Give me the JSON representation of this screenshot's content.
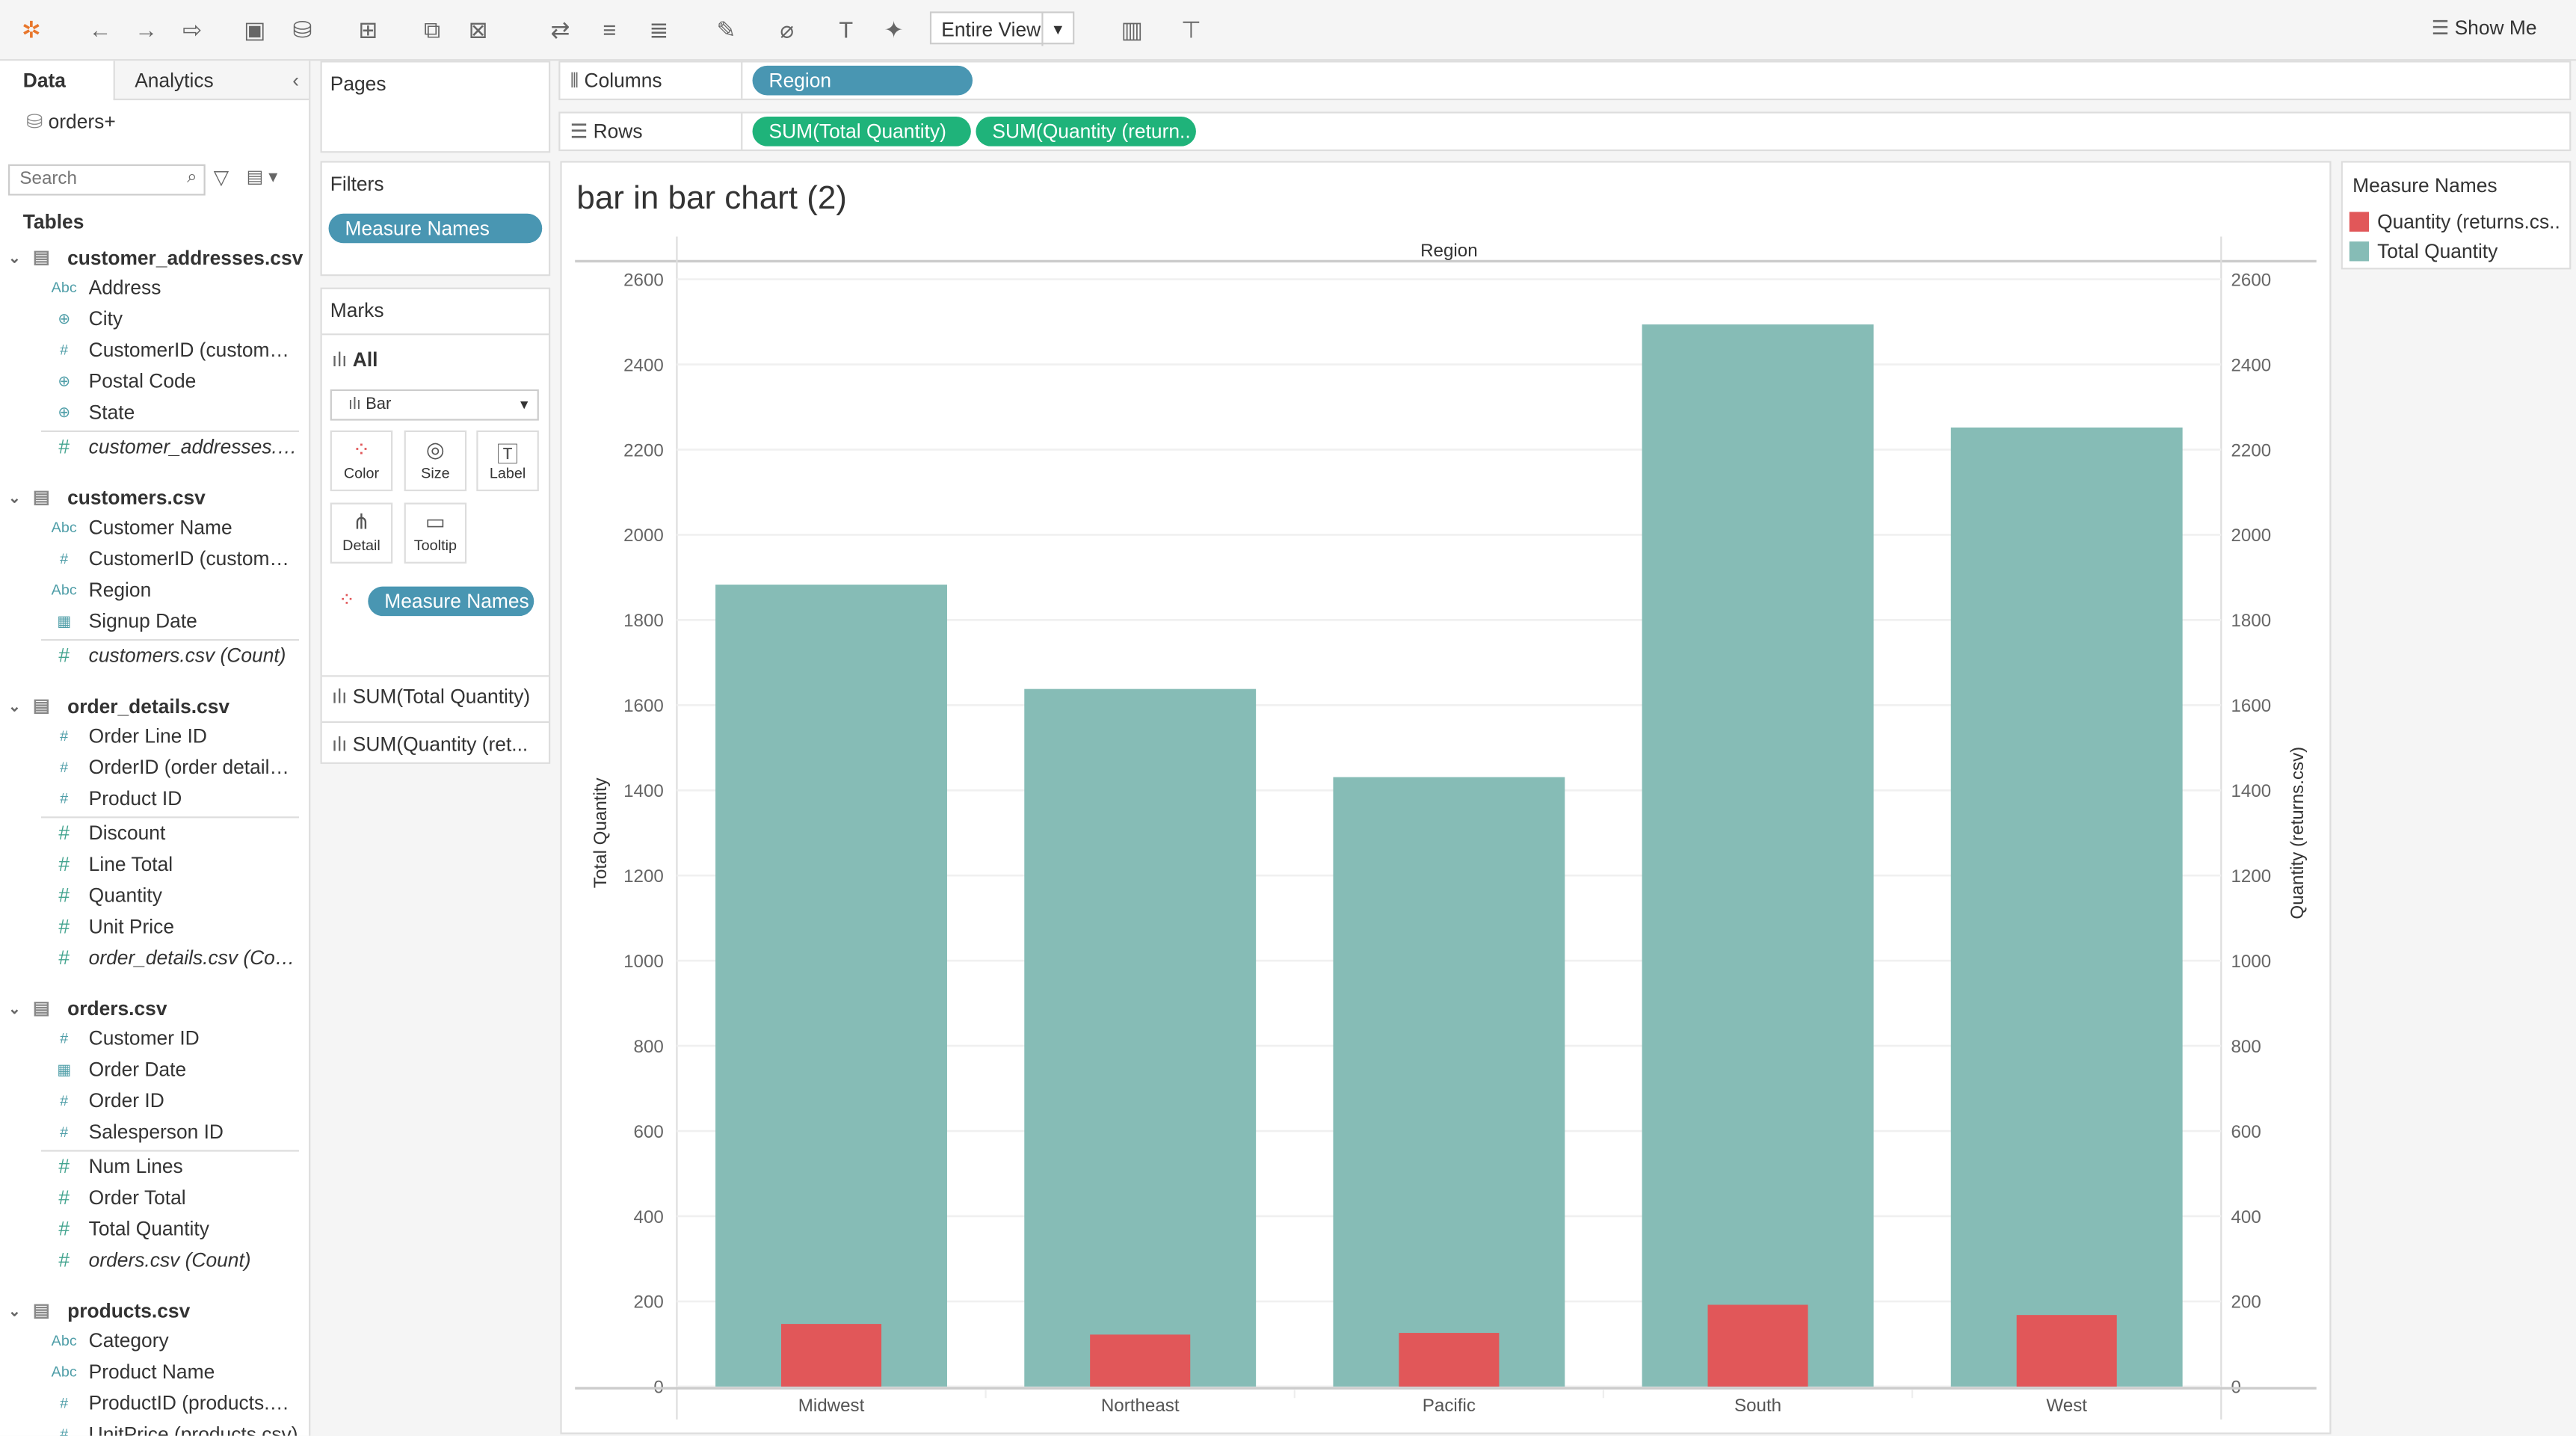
{
  "toolbar": {
    "view_select": "Entire View",
    "show_me": "Show Me"
  },
  "left_panel": {
    "tab_data": "Data",
    "tab_analytics": "Analytics",
    "datasource": "orders+",
    "search_placeholder": "Search",
    "tables_label": "Tables",
    "tables": [
      {
        "name": "customer_addresses.csv",
        "fields": [
          {
            "type": "abc",
            "name": "Address"
          },
          {
            "type": "globe",
            "name": "City"
          },
          {
            "type": "hash",
            "name": "CustomerID (customer..."
          },
          {
            "type": "globe",
            "name": "Postal Code"
          },
          {
            "type": "globe",
            "name": "State"
          },
          {
            "type": "measure",
            "name": "customer_addresses.c...",
            "italic": true
          }
        ]
      },
      {
        "name": "customers.csv",
        "fields": [
          {
            "type": "abc",
            "name": "Customer Name"
          },
          {
            "type": "hash",
            "name": "CustomerID (customer..."
          },
          {
            "type": "abc",
            "name": "Region"
          },
          {
            "type": "calendar",
            "name": "Signup Date"
          },
          {
            "type": "measure",
            "name": "customers.csv (Count)",
            "italic": true
          }
        ]
      },
      {
        "name": "order_details.csv",
        "fields": [
          {
            "type": "hash",
            "name": "Order Line ID"
          },
          {
            "type": "hash",
            "name": "OrderID (order details...."
          },
          {
            "type": "hash",
            "name": "Product ID"
          },
          {
            "type": "measure",
            "name": "Discount"
          },
          {
            "type": "measure",
            "name": "Line Total"
          },
          {
            "type": "measure",
            "name": "Quantity"
          },
          {
            "type": "measure",
            "name": "Unit Price"
          },
          {
            "type": "measure",
            "name": "order_details.csv (Cou...",
            "italic": true
          }
        ]
      },
      {
        "name": "orders.csv",
        "fields": [
          {
            "type": "hash",
            "name": "Customer ID"
          },
          {
            "type": "calendar",
            "name": "Order Date"
          },
          {
            "type": "hash",
            "name": "Order ID"
          },
          {
            "type": "hash",
            "name": "Salesperson ID"
          },
          {
            "type": "measure",
            "name": "Num Lines"
          },
          {
            "type": "measure",
            "name": "Order Total"
          },
          {
            "type": "measure",
            "name": "Total Quantity"
          },
          {
            "type": "measure",
            "name": "orders.csv (Count)",
            "italic": true
          }
        ]
      },
      {
        "name": "products.csv",
        "fields": [
          {
            "type": "abc",
            "name": "Category"
          },
          {
            "type": "abc",
            "name": "Product Name"
          },
          {
            "type": "hash",
            "name": "ProductID (products.cs..."
          },
          {
            "type": "hash",
            "name": "UnitPrice (products.csv)"
          }
        ]
      }
    ]
  },
  "pages": {
    "label": "Pages"
  },
  "filters": {
    "label": "Filters",
    "pill": "Measure Names"
  },
  "marks": {
    "label": "Marks",
    "all": "All",
    "mark_type": "Bar",
    "buttons": [
      "Color",
      "Size",
      "Label",
      "Detail",
      "Tooltip"
    ],
    "color_pill": "Measure Names",
    "measures": [
      "SUM(Total Quantity)",
      "SUM(Quantity (ret..."
    ]
  },
  "shelves": {
    "columns_label": "Columns",
    "columns_pill": "Region",
    "rows_label": "Rows",
    "rows_pills": [
      "SUM(Total Quantity)",
      "SUM(Quantity (return.."
    ]
  },
  "legend": {
    "title": "Measure Names",
    "items": [
      {
        "label": "Quantity (returns.cs..",
        "color": "#e15759"
      },
      {
        "label": "Total Quantity",
        "color": "#86bcb6"
      }
    ]
  },
  "chart_data": {
    "type": "bar",
    "title": "bar in bar chart (2)",
    "header": "Region",
    "categories": [
      "Midwest",
      "Northeast",
      "Pacific",
      "South",
      "West"
    ],
    "series": [
      {
        "name": "Total Quantity",
        "color": "#86bcb6",
        "values": [
          1883,
          1638,
          1431,
          2494,
          2252
        ]
      },
      {
        "name": "Quantity (returns.csv)",
        "color": "#e15759",
        "values": [
          147,
          122,
          126,
          192,
          168
        ]
      }
    ],
    "ylabel": "Total Quantity",
    "ylabel_right": "Quantity (returns.csv)",
    "ylim": [
      0,
      2600
    ],
    "yticks": [
      0,
      200,
      400,
      600,
      800,
      1000,
      1200,
      1400,
      1600,
      1800,
      2000,
      2200,
      2400,
      2600
    ],
    "grid": true,
    "legend": "right"
  }
}
